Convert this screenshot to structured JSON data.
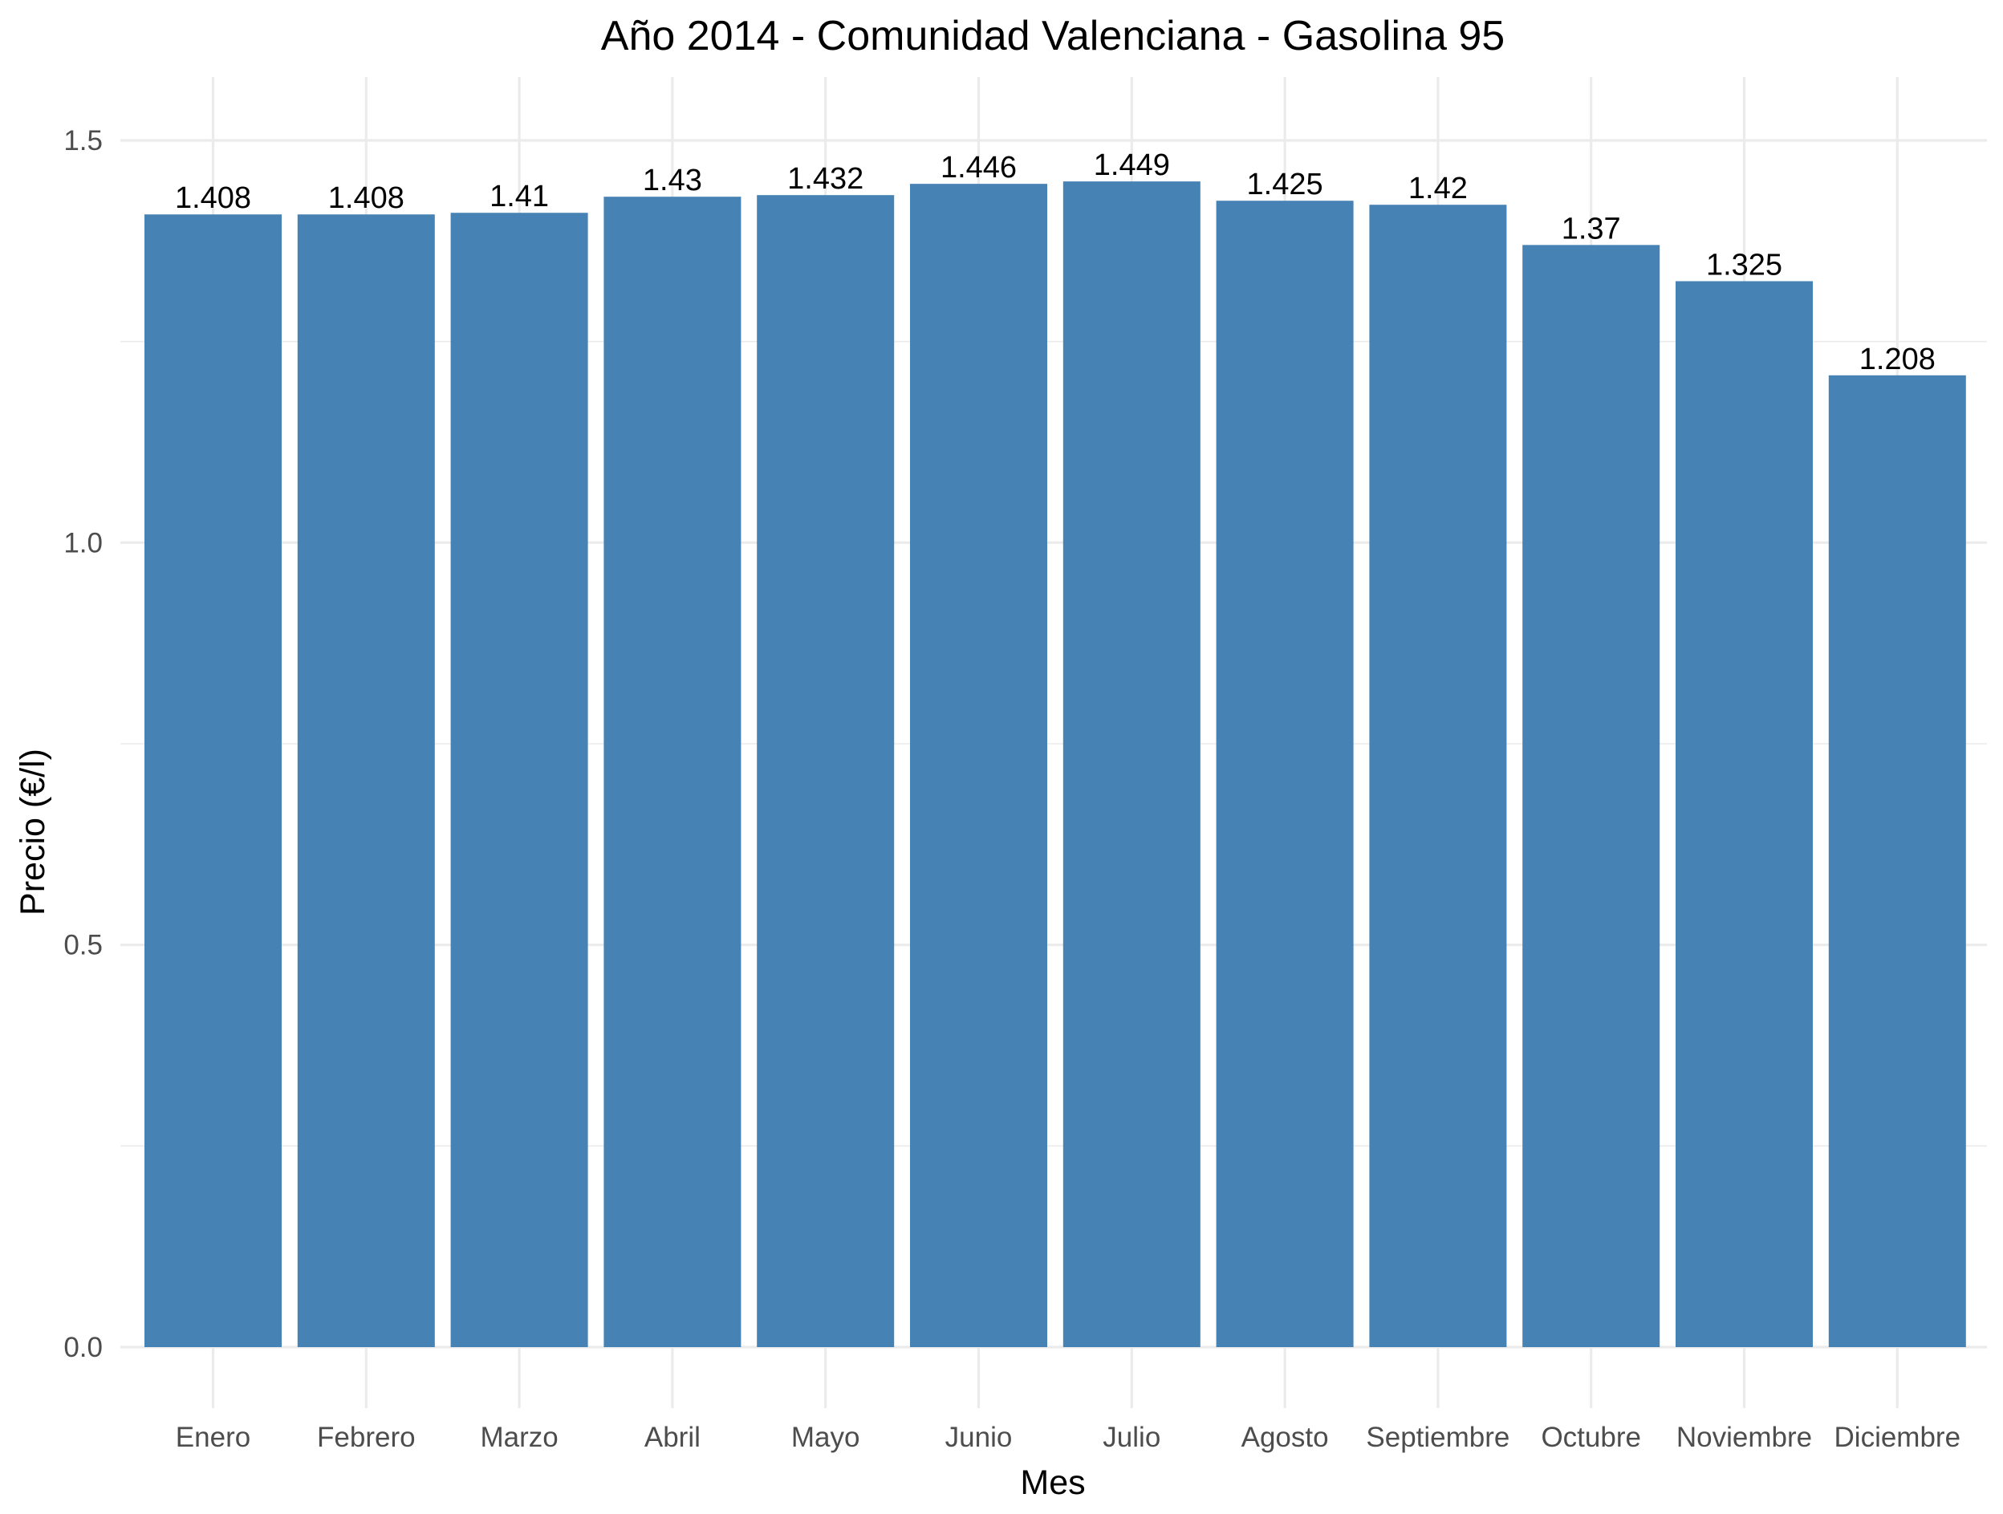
{
  "chart_data": {
    "type": "bar",
    "title": "Año 2014 - Comunidad Valenciana - Gasolina 95",
    "xlabel": "Mes",
    "ylabel": "Precio (€/l)",
    "categories": [
      "Enero",
      "Febrero",
      "Marzo",
      "Abril",
      "Mayo",
      "Junio",
      "Julio",
      "Agosto",
      "Septiembre",
      "Octubre",
      "Noviembre",
      "Diciembre"
    ],
    "values": [
      1.408,
      1.408,
      1.41,
      1.43,
      1.432,
      1.446,
      1.449,
      1.425,
      1.42,
      1.37,
      1.325,
      1.208
    ],
    "value_labels": [
      "1.408",
      "1.408",
      "1.41",
      "1.43",
      "1.432",
      "1.446",
      "1.449",
      "1.425",
      "1.42",
      "1.37",
      "1.325",
      "1.208"
    ],
    "yticks": [
      0.0,
      0.5,
      1.0,
      1.5
    ],
    "ytick_labels": [
      "0.0",
      "0.5",
      "1.0",
      "1.5"
    ],
    "ylim": [
      0,
      1.5
    ],
    "grid": true,
    "legend": "none",
    "bar_color": "#4682b4"
  }
}
